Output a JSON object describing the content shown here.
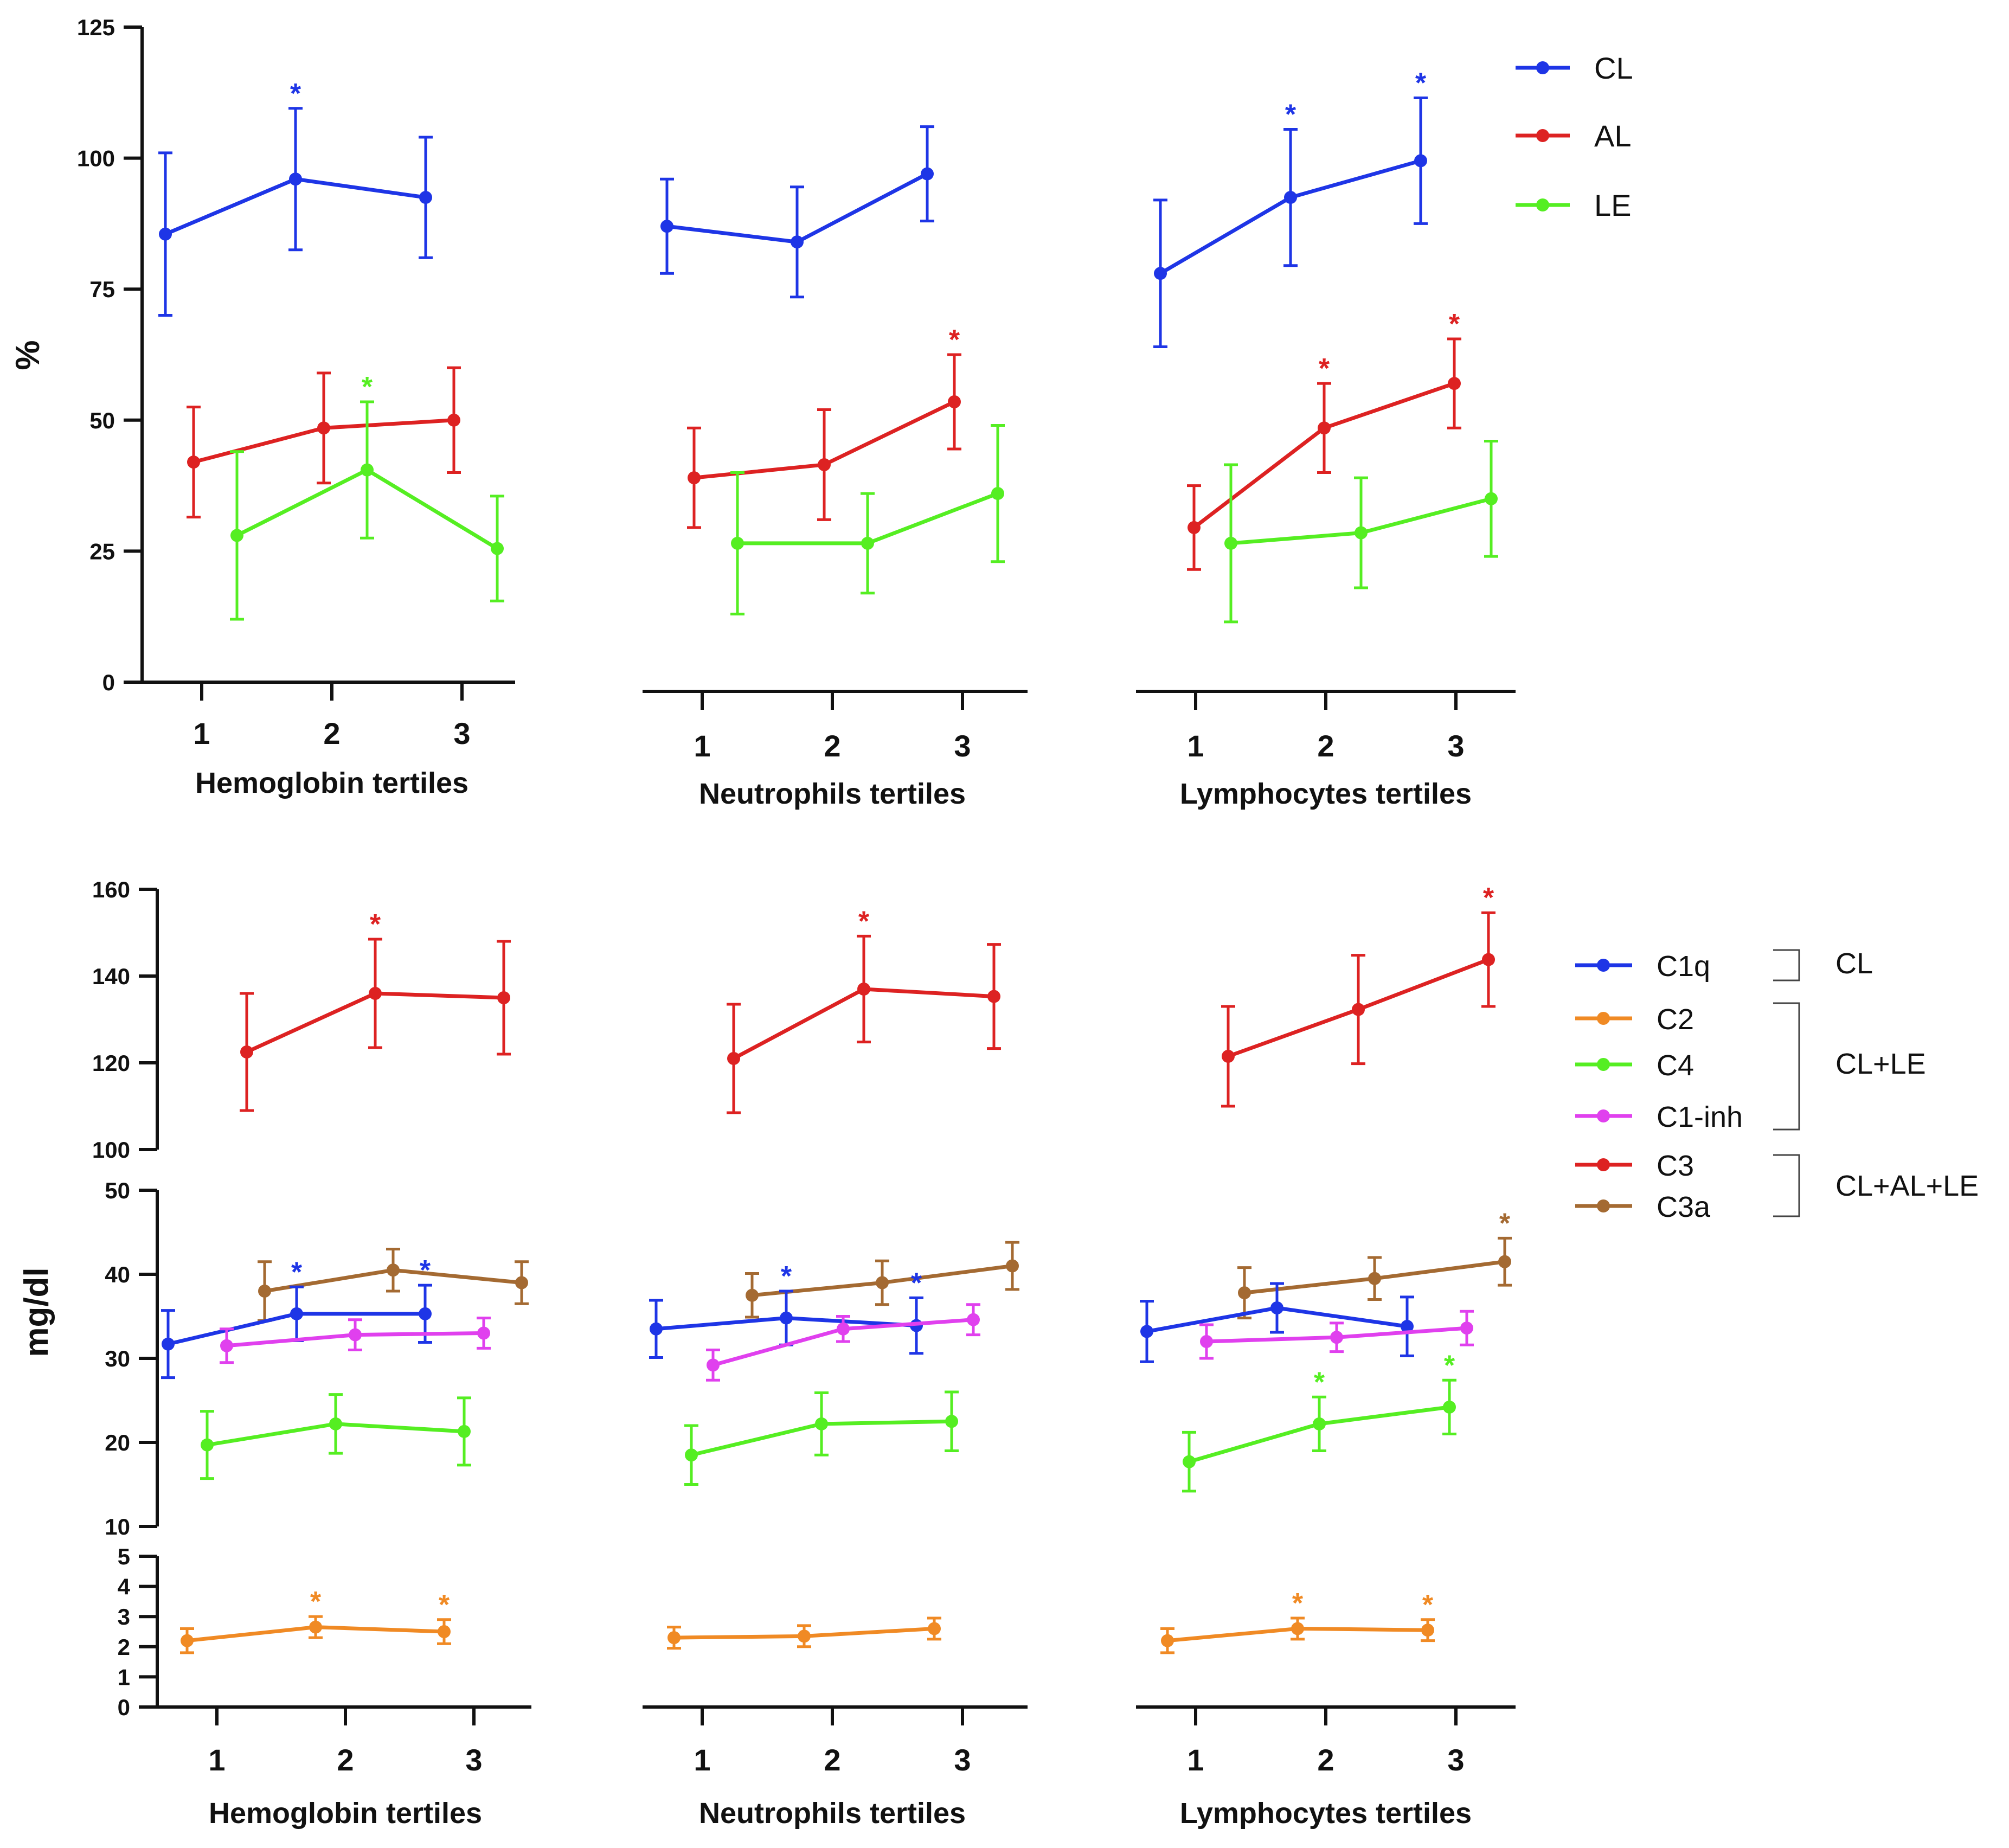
{
  "colors": {
    "CL": "#1e35e6",
    "AL": "#dd2222",
    "LE": "#55ee22",
    "C1q": "#1e35e6",
    "C2": "#f08a24",
    "C4": "#55ee22",
    "C1_inh": "#e040ee",
    "C3": "#dd2222",
    "C3a": "#a46a32",
    "axis": "#111111"
  },
  "legend_top": [
    {
      "key": "CL",
      "label": "CL"
    },
    {
      "key": "AL",
      "label": "AL"
    },
    {
      "key": "LE",
      "label": "LE"
    }
  ],
  "legend_bottom": [
    {
      "key": "C1q",
      "label": "C1q"
    },
    {
      "key": "C2",
      "label": "C2"
    },
    {
      "key": "C4",
      "label": "C4"
    },
    {
      "key": "C1_inh",
      "label": "C1-inh"
    },
    {
      "key": "C3",
      "label": "C3"
    },
    {
      "key": "C3a",
      "label": "C3a"
    }
  ],
  "legend_groups": [
    {
      "label": "CL"
    },
    {
      "label": "CL+LE"
    },
    {
      "label": "CL+AL+LE"
    }
  ],
  "chart_data": [
    {
      "type": "line",
      "ylabel": "%",
      "ylim": [
        0,
        125
      ],
      "yticks": [
        0,
        25,
        50,
        75,
        100,
        125
      ],
      "categories": [
        "1",
        "2",
        "3"
      ],
      "panels": [
        {
          "xlabel": "Hemoglobin tertiles",
          "series": [
            {
              "name": "CL",
              "values": [
                85.5,
                96,
                92.5
              ],
              "err": [
                15.5,
                13.5,
                11.5
              ],
              "sig": [
                false,
                true,
                false
              ]
            },
            {
              "name": "AL",
              "values": [
                42,
                48.5,
                50
              ],
              "err": [
                10.5,
                10.5,
                10
              ],
              "sig": [
                false,
                false,
                false
              ]
            },
            {
              "name": "LE",
              "values": [
                28,
                40.5,
                25.5
              ],
              "err": [
                16,
                13,
                10
              ],
              "sig": [
                false,
                true,
                false
              ]
            }
          ]
        },
        {
          "xlabel": "Neutrophils tertiles",
          "series": [
            {
              "name": "CL",
              "values": [
                87,
                84,
                97
              ],
              "err": [
                9,
                10.5,
                9
              ],
              "sig": [
                false,
                false,
                false
              ]
            },
            {
              "name": "AL",
              "values": [
                39,
                41.5,
                53.5
              ],
              "err": [
                9.5,
                10.5,
                9
              ],
              "sig": [
                false,
                false,
                true
              ]
            },
            {
              "name": "LE",
              "values": [
                26.5,
                26.5,
                36
              ],
              "err": [
                13.5,
                9.5,
                13
              ],
              "sig": [
                false,
                false,
                false
              ]
            }
          ]
        },
        {
          "xlabel": "Lymphocytes tertiles",
          "series": [
            {
              "name": "CL",
              "values": [
                78,
                92.5,
                99.5
              ],
              "err": [
                14,
                13,
                12
              ],
              "sig": [
                false,
                true,
                true
              ]
            },
            {
              "name": "AL",
              "values": [
                29.5,
                48.5,
                57
              ],
              "err": [
                8,
                8.5,
                8.5
              ],
              "sig": [
                false,
                true,
                true
              ]
            },
            {
              "name": "LE",
              "values": [
                26.5,
                28.5,
                35
              ],
              "err": [
                15,
                10.5,
                11
              ],
              "sig": [
                false,
                false,
                false
              ]
            }
          ]
        }
      ]
    },
    {
      "type": "line",
      "ylabel": "mg/dl",
      "segments": [
        {
          "ylim": [
            100,
            160
          ],
          "yticks": [
            100,
            120,
            140,
            160
          ]
        },
        {
          "ylim": [
            10,
            50
          ],
          "yticks": [
            10,
            20,
            30,
            40,
            50
          ]
        },
        {
          "ylim": [
            0,
            5
          ],
          "yticks": [
            0,
            1,
            2,
            3,
            4,
            5
          ]
        }
      ],
      "categories": [
        "1",
        "2",
        "3"
      ],
      "panels": [
        {
          "xlabel": "Hemoglobin tertiles",
          "series": [
            {
              "name": "C3",
              "values": [
                122.5,
                136,
                135
              ],
              "err": [
                13.5,
                12.5,
                13
              ],
              "sig": [
                false,
                true,
                false
              ]
            },
            {
              "name": "C3a",
              "values": [
                38,
                40.5,
                39
              ],
              "err": [
                3.5,
                2.5,
                2.5
              ],
              "sig": [
                false,
                false,
                false
              ]
            },
            {
              "name": "C1q",
              "values": [
                31.7,
                35.3,
                35.3
              ],
              "err": [
                4,
                3.2,
                3.4
              ],
              "sig": [
                false,
                true,
                true
              ]
            },
            {
              "name": "C1-inh",
              "values": [
                31.5,
                32.8,
                33
              ],
              "err": [
                2,
                1.8,
                1.8
              ],
              "sig": [
                false,
                false,
                false
              ]
            },
            {
              "name": "C4",
              "values": [
                19.7,
                22.2,
                21.3
              ],
              "err": [
                4,
                3.5,
                4
              ],
              "sig": [
                false,
                false,
                false
              ]
            },
            {
              "name": "C2",
              "values": [
                2.2,
                2.65,
                2.5
              ],
              "err": [
                0.4,
                0.35,
                0.4
              ],
              "sig": [
                false,
                true,
                true
              ]
            }
          ]
        },
        {
          "xlabel": "Neutrophils tertiles",
          "series": [
            {
              "name": "C3",
              "values": [
                121,
                137,
                135.3
              ],
              "err": [
                12.5,
                12.2,
                12
              ],
              "sig": [
                false,
                true,
                false
              ]
            },
            {
              "name": "C3a",
              "values": [
                37.5,
                39,
                41
              ],
              "err": [
                2.6,
                2.6,
                2.8
              ],
              "sig": [
                false,
                false,
                false
              ]
            },
            {
              "name": "C1q",
              "values": [
                33.5,
                34.8,
                33.9
              ],
              "err": [
                3.4,
                3.2,
                3.3
              ],
              "sig": [
                false,
                true,
                true
              ]
            },
            {
              "name": "C1-inh",
              "values": [
                29.2,
                33.5,
                34.6
              ],
              "err": [
                1.8,
                1.5,
                1.8
              ],
              "sig": [
                false,
                false,
                false
              ]
            },
            {
              "name": "C4",
              "values": [
                18.5,
                22.2,
                22.5
              ],
              "err": [
                3.5,
                3.7,
                3.5
              ],
              "sig": [
                false,
                false,
                false
              ]
            },
            {
              "name": "C2",
              "values": [
                2.3,
                2.35,
                2.6
              ],
              "err": [
                0.35,
                0.35,
                0.35
              ],
              "sig": [
                false,
                false,
                false
              ]
            }
          ]
        },
        {
          "xlabel": "Lymphocytes tertiles",
          "series": [
            {
              "name": "C3",
              "values": [
                121.5,
                132.3,
                143.8
              ],
              "err": [
                11.5,
                12.5,
                10.8
              ],
              "sig": [
                false,
                false,
                true
              ]
            },
            {
              "name": "C3a",
              "values": [
                37.8,
                39.5,
                41.5
              ],
              "err": [
                3,
                2.5,
                2.8
              ],
              "sig": [
                false,
                false,
                true
              ]
            },
            {
              "name": "C1q",
              "values": [
                33.2,
                36,
                33.8
              ],
              "err": [
                3.6,
                2.9,
                3.5
              ],
              "sig": [
                false,
                false,
                false
              ]
            },
            {
              "name": "C1-inh",
              "values": [
                32,
                32.5,
                33.6
              ],
              "err": [
                2,
                1.7,
                2
              ],
              "sig": [
                false,
                false,
                false
              ]
            },
            {
              "name": "C4",
              "values": [
                17.7,
                22.2,
                24.2
              ],
              "err": [
                3.5,
                3.2,
                3.2
              ],
              "sig": [
                false,
                true,
                true
              ]
            },
            {
              "name": "C2",
              "values": [
                2.2,
                2.6,
                2.55
              ],
              "err": [
                0.4,
                0.35,
                0.35
              ],
              "sig": [
                false,
                true,
                true
              ]
            }
          ]
        }
      ]
    }
  ]
}
